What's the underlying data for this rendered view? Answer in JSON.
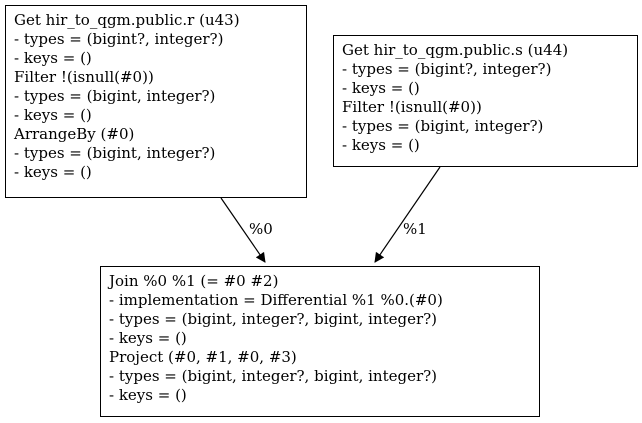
{
  "nodes": {
    "u43": {
      "lines": [
        "Get hir_to_qgm.public.r (u43)",
        "- types = (bigint?, integer?)",
        "- keys = ()",
        "Filter !(isnull(#0))",
        "- types = (bigint, integer?)",
        "- keys = ()",
        "ArrangeBy (#0)",
        "- types = (bigint, integer?)",
        "- keys = ()"
      ]
    },
    "u44": {
      "lines": [
        "Get hir_to_qgm.public.s (u44)",
        "- types = (bigint?, integer?)",
        "- keys = ()",
        "Filter !(isnull(#0))",
        "- types = (bigint, integer?)",
        "- keys = ()"
      ]
    },
    "join": {
      "lines": [
        "Join %0 %1 (= #0 #2)",
        "- implementation = Differential %1 %0.(#0)",
        "- types = (bigint, integer?, bigint, integer?)",
        "- keys = ()",
        "Project (#0, #1, #0, #3)",
        "- types = (bigint, integer?, bigint, integer?)",
        "- keys = ()"
      ]
    }
  },
  "edges": {
    "left_label": "%0",
    "right_label": "%1"
  }
}
